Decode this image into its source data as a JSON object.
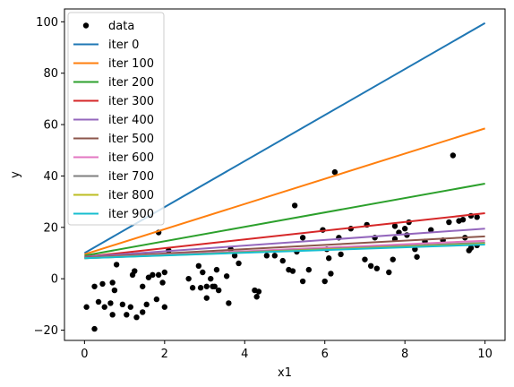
{
  "chart_data": {
    "type": "scatter",
    "title": "",
    "xlabel": "x1",
    "ylabel": "y",
    "xlim": [
      -0.5,
      10.5
    ],
    "ylim": [
      -24,
      105
    ],
    "xticks": [
      0,
      2,
      4,
      6,
      8,
      10
    ],
    "yticks": [
      -20,
      0,
      20,
      40,
      60,
      80,
      100
    ],
    "grid": false,
    "legend_position": "top-left",
    "scatter": {
      "name": "data",
      "color": "#000000",
      "points": [
        [
          0.05,
          -11
        ],
        [
          0.25,
          -3
        ],
        [
          0.25,
          -19.5
        ],
        [
          0.35,
          -9
        ],
        [
          0.45,
          -2
        ],
        [
          0.5,
          -11
        ],
        [
          0.65,
          -9.5
        ],
        [
          0.7,
          -1.5
        ],
        [
          0.7,
          -14
        ],
        [
          0.75,
          -4.5
        ],
        [
          0.8,
          5.5
        ],
        [
          0.95,
          -10
        ],
        [
          1.05,
          -14
        ],
        [
          1.15,
          -11
        ],
        [
          1.2,
          1.5
        ],
        [
          1.25,
          3
        ],
        [
          1.3,
          -15
        ],
        [
          1.45,
          -3
        ],
        [
          1.45,
          -13
        ],
        [
          1.55,
          -10
        ],
        [
          1.6,
          0.5
        ],
        [
          1.7,
          1.5
        ],
        [
          1.8,
          -8
        ],
        [
          1.85,
          18
        ],
        [
          1.85,
          1.5
        ],
        [
          1.95,
          -1.5
        ],
        [
          2.0,
          2.5
        ],
        [
          2.0,
          -11
        ],
        [
          2.1,
          11
        ],
        [
          2.6,
          0
        ],
        [
          2.7,
          -3.5
        ],
        [
          2.85,
          5
        ],
        [
          2.9,
          -3.5
        ],
        [
          2.95,
          2.5
        ],
        [
          3.05,
          -3
        ],
        [
          3.05,
          -7.5
        ],
        [
          3.15,
          0
        ],
        [
          3.2,
          -3
        ],
        [
          3.25,
          -3
        ],
        [
          3.35,
          -4.5
        ],
        [
          3.3,
          3.5
        ],
        [
          3.55,
          1
        ],
        [
          3.6,
          -9.5
        ],
        [
          3.65,
          11.5
        ],
        [
          3.75,
          9
        ],
        [
          3.85,
          6
        ],
        [
          4.25,
          -4.5
        ],
        [
          4.3,
          -7
        ],
        [
          4.35,
          -5
        ],
        [
          4.55,
          9
        ],
        [
          4.75,
          9
        ],
        [
          4.95,
          7
        ],
        [
          5.1,
          3.5
        ],
        [
          5.2,
          3
        ],
        [
          5.25,
          28.5
        ],
        [
          5.3,
          10.5
        ],
        [
          5.45,
          16
        ],
        [
          5.45,
          -1
        ],
        [
          5.6,
          3.5
        ],
        [
          5.95,
          19
        ],
        [
          6.0,
          -1
        ],
        [
          6.05,
          11.5
        ],
        [
          6.1,
          8
        ],
        [
          6.15,
          2
        ],
        [
          6.25,
          41.5
        ],
        [
          6.35,
          16
        ],
        [
          6.4,
          9.5
        ],
        [
          6.65,
          19.5
        ],
        [
          7.0,
          7.5
        ],
        [
          7.05,
          21
        ],
        [
          7.15,
          5
        ],
        [
          7.25,
          16
        ],
        [
          7.3,
          4
        ],
        [
          7.6,
          2.5
        ],
        [
          7.7,
          7.5
        ],
        [
          7.75,
          15.5
        ],
        [
          7.75,
          20.5
        ],
        [
          7.85,
          18
        ],
        [
          8.0,
          19.5
        ],
        [
          8.05,
          17
        ],
        [
          8.1,
          22
        ],
        [
          8.25,
          11.5
        ],
        [
          8.3,
          8.5
        ],
        [
          8.5,
          14.5
        ],
        [
          8.65,
          19
        ],
        [
          8.95,
          15
        ],
        [
          9.1,
          22
        ],
        [
          9.2,
          48
        ],
        [
          9.35,
          22.5
        ],
        [
          9.45,
          23
        ],
        [
          9.5,
          16
        ],
        [
          9.6,
          11
        ],
        [
          9.65,
          12
        ],
        [
          9.65,
          24.5
        ],
        [
          9.8,
          24
        ],
        [
          9.8,
          13
        ]
      ]
    },
    "series": [
      {
        "name": "iter 0",
        "color": "#1f77b4",
        "x": [
          0,
          10
        ],
        "y": [
          10,
          99.5
        ]
      },
      {
        "name": "iter 100",
        "color": "#ff7f0e",
        "x": [
          0,
          10
        ],
        "y": [
          9.5,
          58.5
        ]
      },
      {
        "name": "iter 200",
        "color": "#2ca02c",
        "x": [
          0,
          10
        ],
        "y": [
          9,
          37
        ]
      },
      {
        "name": "iter 300",
        "color": "#d62728",
        "x": [
          0,
          10
        ],
        "y": [
          8.5,
          25.5
        ]
      },
      {
        "name": "iter 400",
        "color": "#9467bd",
        "x": [
          0,
          10
        ],
        "y": [
          8.5,
          19.5
        ]
      },
      {
        "name": "iter 500",
        "color": "#8c564b",
        "x": [
          0,
          10
        ],
        "y": [
          8.2,
          16.5
        ]
      },
      {
        "name": "iter 600",
        "color": "#e377c2",
        "x": [
          0,
          10
        ],
        "y": [
          8,
          14.8
        ]
      },
      {
        "name": "iter 700",
        "color": "#7f7f7f",
        "x": [
          0,
          10
        ],
        "y": [
          8,
          14
        ]
      },
      {
        "name": "iter 800",
        "color": "#bcbd22",
        "x": [
          0,
          10
        ],
        "y": [
          8,
          13.6
        ]
      },
      {
        "name": "iter 900",
        "color": "#17becf",
        "x": [
          0,
          10
        ],
        "y": [
          8,
          13.3
        ]
      }
    ]
  }
}
